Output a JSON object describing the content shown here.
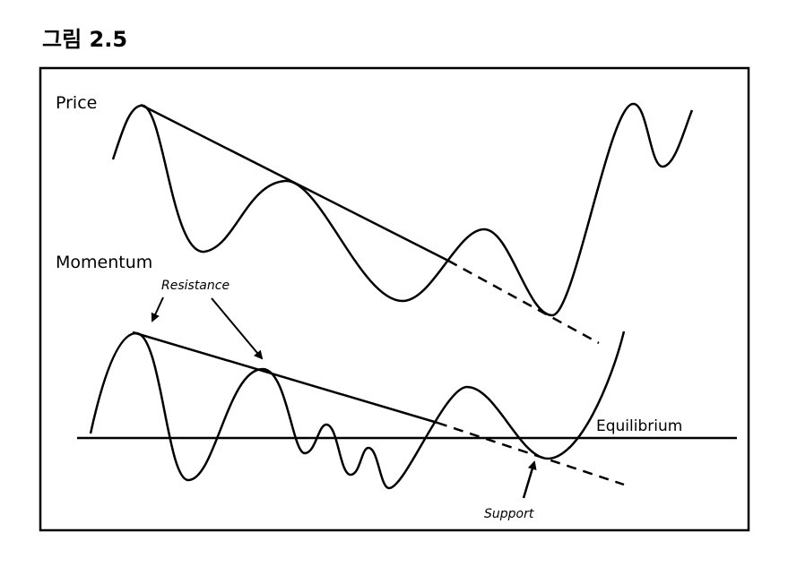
{
  "figure": {
    "title": "그림 2.5"
  },
  "panels": {
    "price_label": "Price",
    "momentum_label": "Momentum"
  },
  "annotations": {
    "resistance": "Resistance",
    "support": "Support",
    "equilibrium": "Equilibrium"
  },
  "colors": {
    "line": "#000000",
    "background": "#ffffff"
  }
}
